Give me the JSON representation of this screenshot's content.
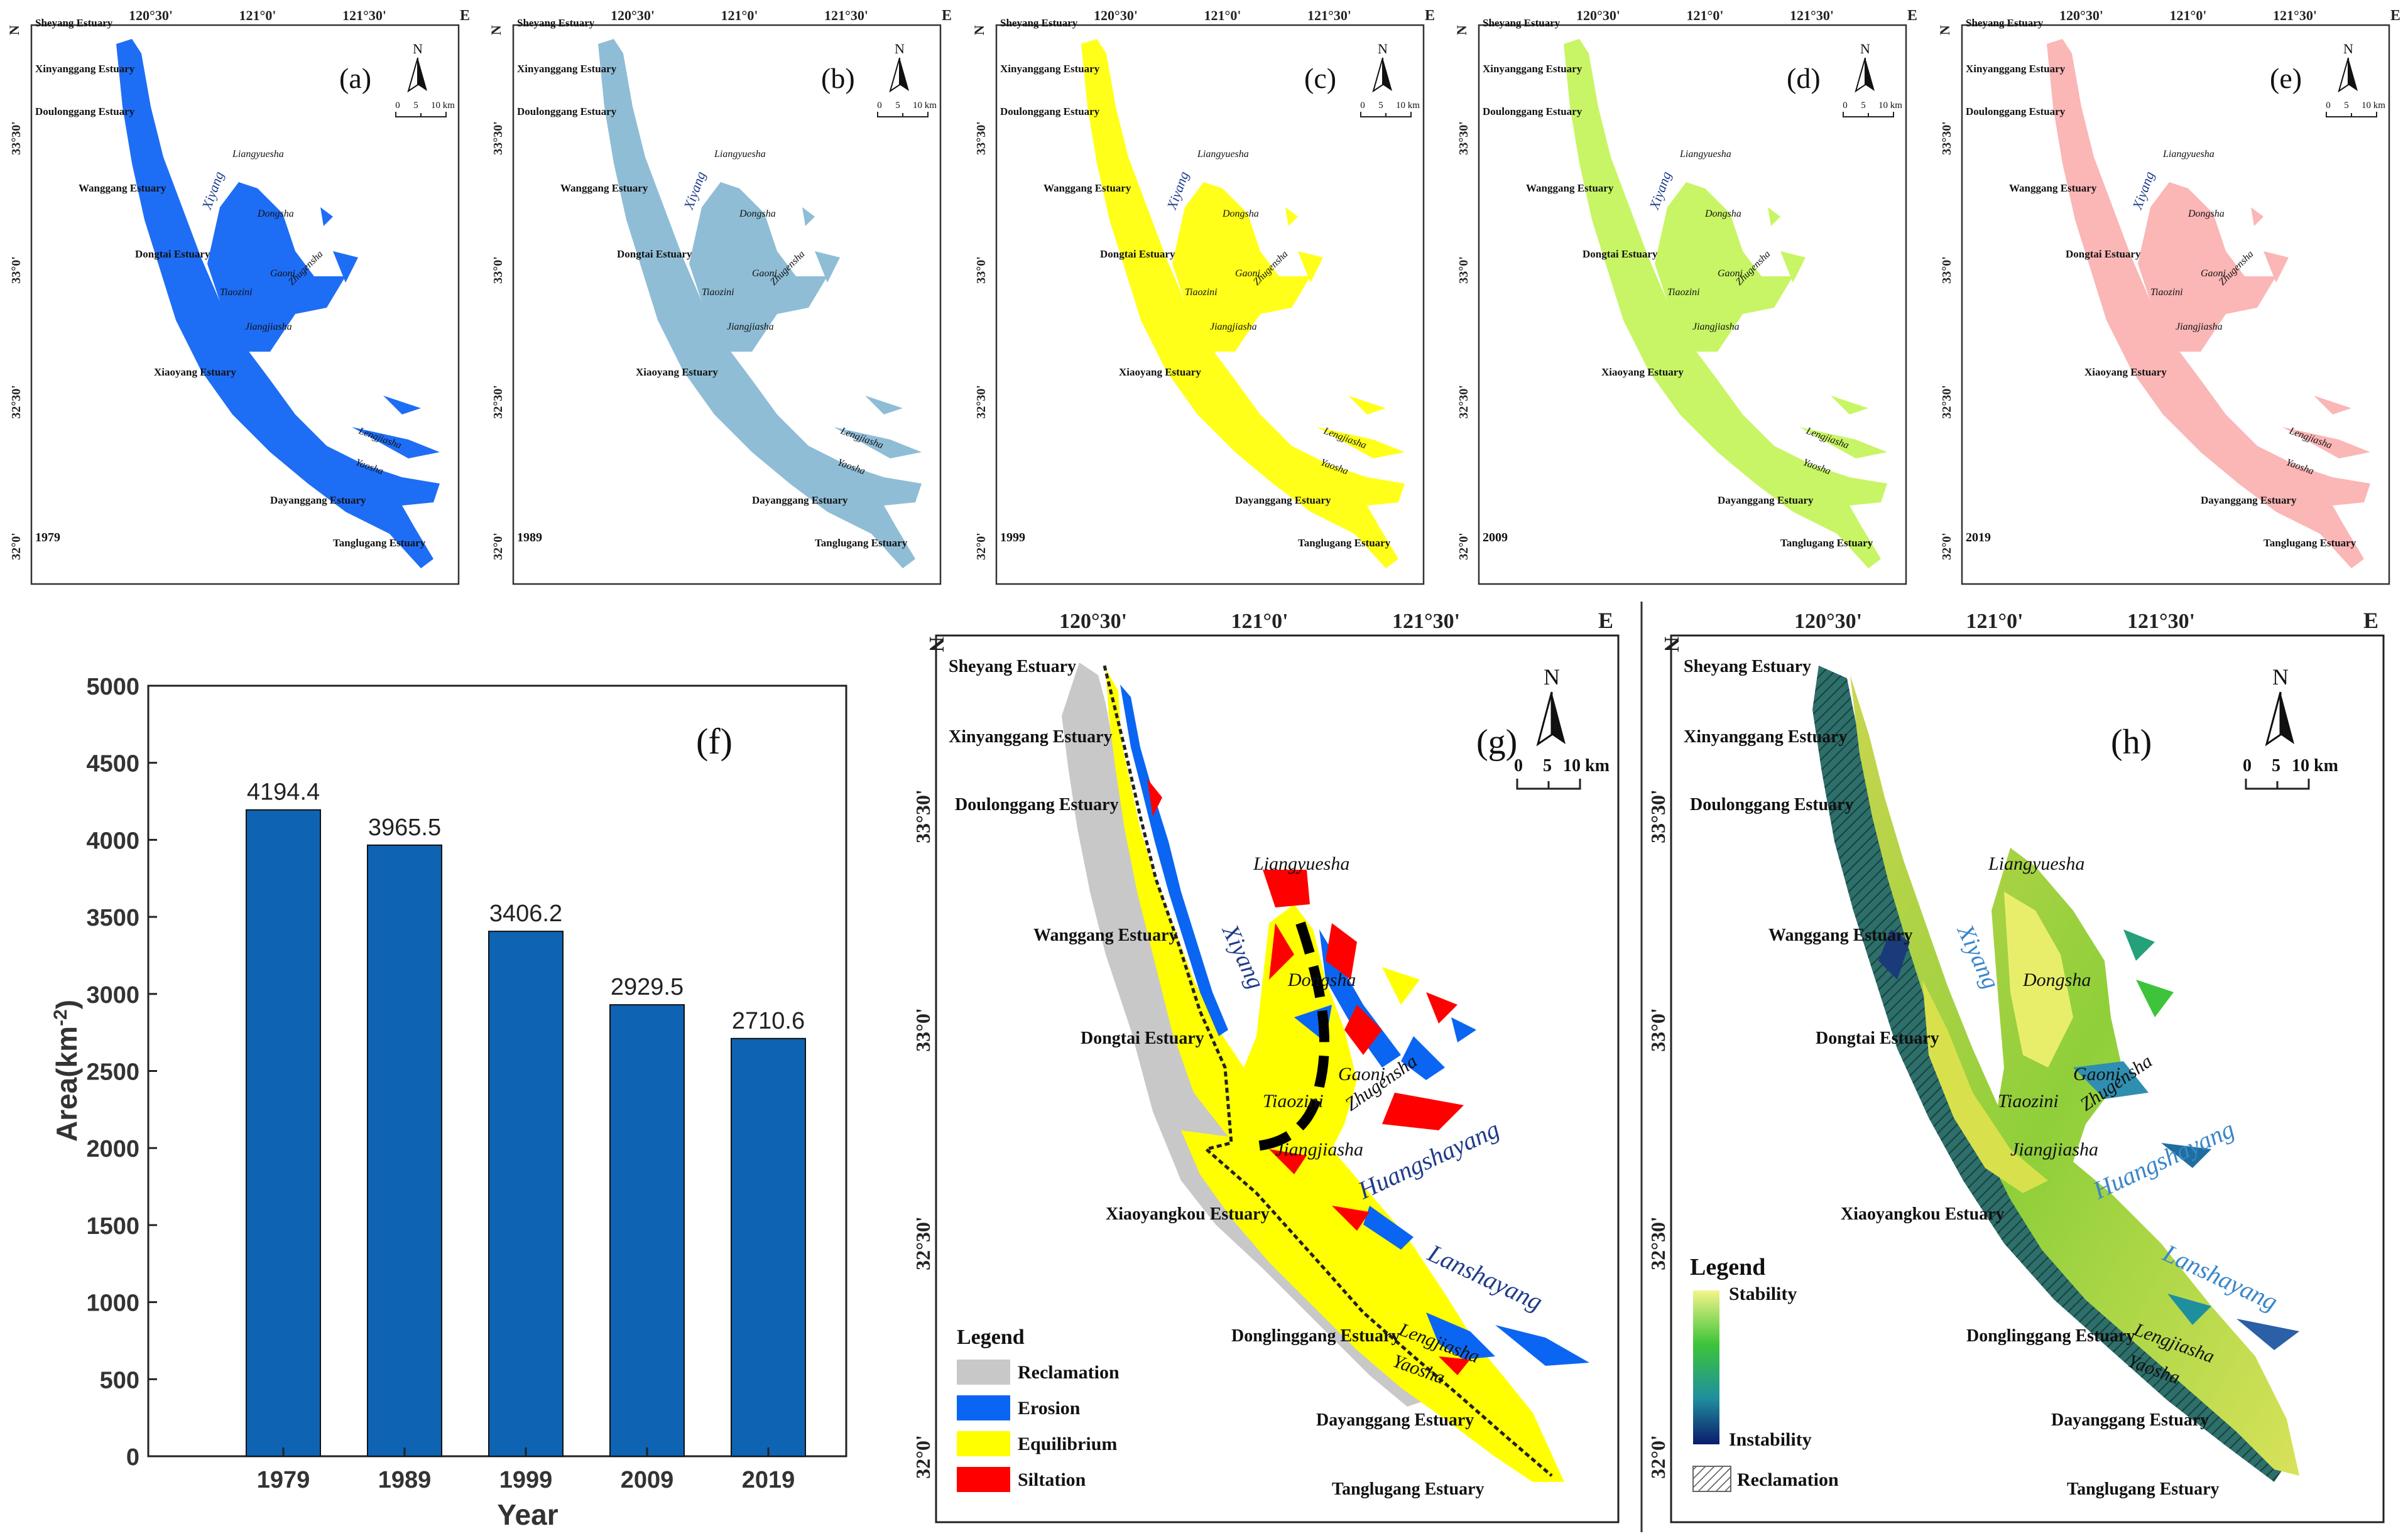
{
  "colors": {
    "erosion": "#0a66f2",
    "equilibrium": "#ffff00",
    "siltation": "#ff0000",
    "reclamation": "#c8c8c8",
    "bar": "#0f63b3",
    "map_a": "#1e6df5",
    "map_b": "#8fbdd6",
    "map_c": "#ffff1a",
    "map_d": "#c8f565",
    "map_e": "#fbb6b6",
    "stability_high": "#f3f58a",
    "stability_mid": "#3dc43a",
    "stability_low": "#0c1b6b",
    "channel_label": "#1f3b8a"
  },
  "small_maps": [
    {
      "panel": "(a)",
      "year": "1979",
      "color_key": "map_a"
    },
    {
      "panel": "(b)",
      "year": "1989",
      "color_key": "map_b"
    },
    {
      "panel": "(c)",
      "year": "1999",
      "color_key": "map_c"
    },
    {
      "panel": "(d)",
      "year": "2009",
      "color_key": "map_d"
    },
    {
      "panel": "(e)",
      "year": "2019",
      "color_key": "map_e"
    }
  ],
  "small_map_labels": {
    "top_ticks": [
      "120°30'",
      "121°0'",
      "121°30'"
    ],
    "corner_e": "E",
    "corner_n": "N",
    "side_ticks": [
      "33°30'",
      "33°0'",
      "32°30'",
      "32°0'"
    ],
    "north": "N",
    "scale_nums": [
      "0",
      "5",
      "10 km"
    ],
    "estuaries": [
      "Sheyang Estuary",
      "Xinyanggang Estuary",
      "Doulonggang Estuary",
      "Wanggang Estuary",
      "Dongtai Estuary",
      "Xiaoyang Estuary",
      "Dayanggang Estuary",
      "Tanglugang Estuary"
    ],
    "sandbanks": [
      "Liangyuesha",
      "Xiyang",
      "Dongsha",
      "Gaoni",
      "Zhugensha",
      "Tiaozini",
      "Jiangjiasha",
      "Lengjiasha",
      "Yaosha"
    ]
  },
  "chart_data": {
    "type": "bar",
    "panel_label": "(f)",
    "categories": [
      "1979",
      "1989",
      "1999",
      "2009",
      "2019"
    ],
    "values": [
      4194.4,
      3965.5,
      3406.2,
      2929.5,
      2710.6
    ],
    "value_labels": [
      "4194.4",
      "3965.5",
      "3406.2",
      "2929.5",
      "2710.6"
    ],
    "ylim": [
      0,
      5000
    ],
    "yticks": [
      "0",
      "500",
      "1000",
      "1500",
      "2000",
      "2500",
      "3000",
      "3500",
      "4000",
      "4500",
      "5000"
    ],
    "xlabel": "Year",
    "ylabel_main": "Area(km",
    "ylabel_sup": "-2",
    "ylabel_end": ")"
  },
  "map_g": {
    "panel": "(g)",
    "top_ticks": [
      "120°30'",
      "121°0'",
      "121°30'"
    ],
    "corner_e": "E",
    "corner_n": "N",
    "side_ticks": [
      "33°30'",
      "33°0'",
      "32°30'",
      "32°0'"
    ],
    "north": "N",
    "scale_nums": [
      "0",
      "5",
      "10 km"
    ],
    "estuaries": [
      "Sheyang Estuary",
      "Xinyanggang Estuary",
      "Doulonggang Estuary",
      "Wanggang Estuary",
      "Dongtai Estuary",
      "Xiaoyangkou Estuary",
      "Donglinggang Estuary",
      "Dayanggang Estuary",
      "Tanglugang Estuary"
    ],
    "sandbanks": [
      "Liangyuesha",
      "Dongsha",
      "Gaoni",
      "Zhugensha",
      "Tiaozini",
      "Jiangjiasha",
      "Lengjiasha",
      "Yaosha"
    ],
    "channels": [
      "Xiyang",
      "Huangshayang",
      "Lanshayang"
    ],
    "legend_title": "Legend",
    "legend_items": [
      "Reclamation",
      "Erosion",
      "Equilibrium",
      "Siltation"
    ]
  },
  "map_h": {
    "panel": "(h)",
    "top_ticks": [
      "120°30'",
      "121°0'",
      "121°30'"
    ],
    "corner_e": "E",
    "corner_n": "N",
    "side_ticks": [
      "33°30'",
      "33°0'",
      "32°30'",
      "32°0'"
    ],
    "north": "N",
    "scale_nums": [
      "0",
      "5",
      "10 km"
    ],
    "estuaries": [
      "Sheyang Estuary",
      "Xinyanggang Estuary",
      "Doulonggang Estuary",
      "Wanggang Estuary",
      "Dongtai Estuary",
      "Xiaoyangkou Estuary",
      "Donglinggang Estuary",
      "Dayanggang Estuary",
      "Tanglugang Estuary"
    ],
    "sandbanks": [
      "Liangyuesha",
      "Dongsha",
      "Gaoni",
      "Zhugensha",
      "Tiaozini",
      "Jiangjiasha",
      "Lengjiasha",
      "Yaosha"
    ],
    "channels": [
      "Xiyang",
      "Huangshayang",
      "Lanshayang"
    ],
    "legend_title": "Legend",
    "legend_high": "Stability",
    "legend_low": "Instability",
    "legend_reclamation": "Reclamation"
  }
}
